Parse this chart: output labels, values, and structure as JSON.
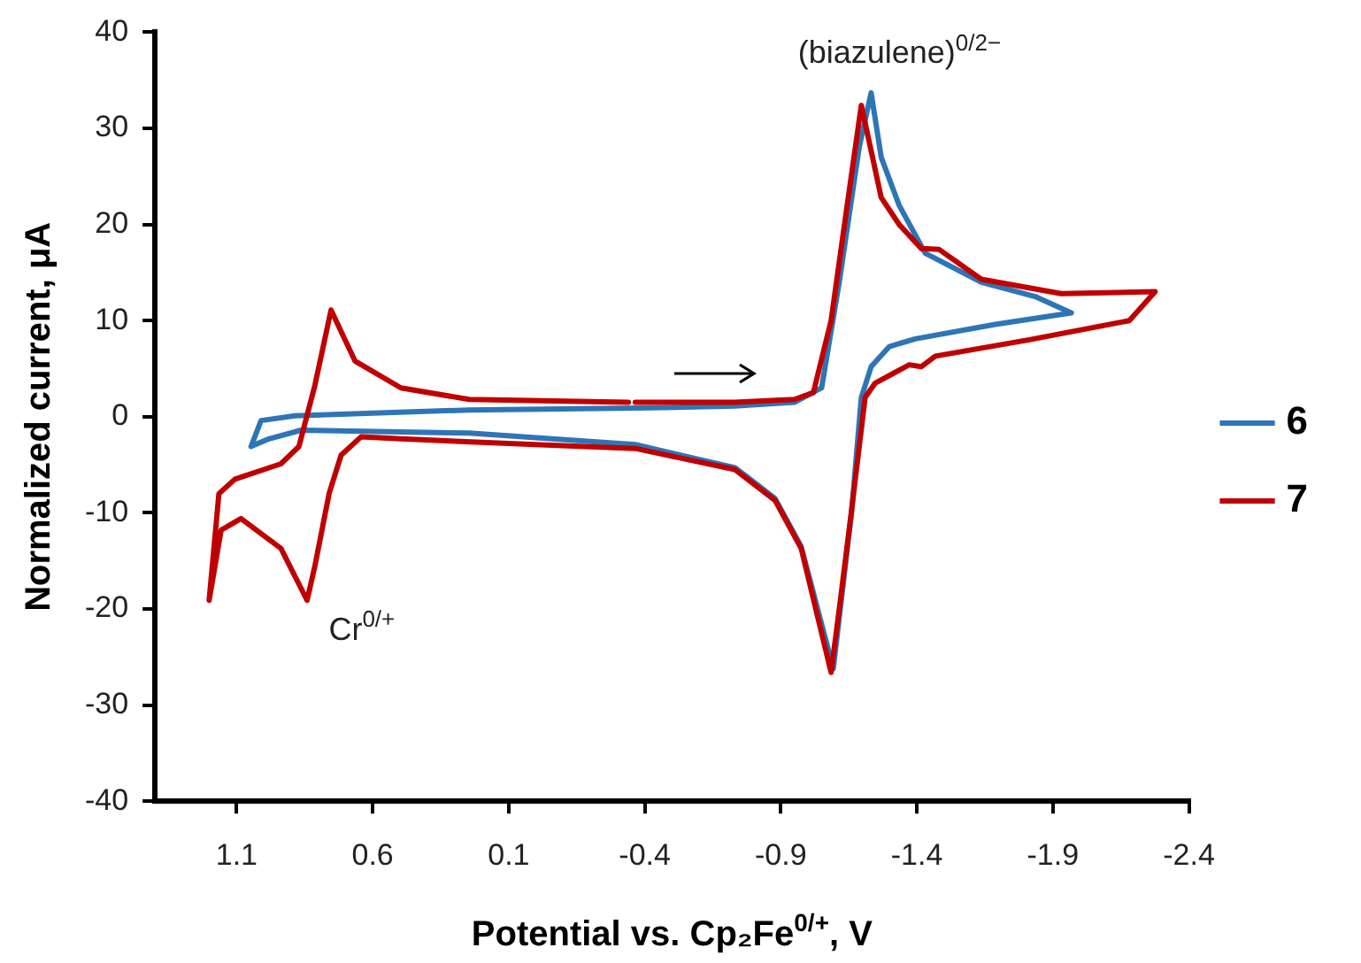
{
  "chart_data": {
    "type": "line",
    "xlabel": "Potential vs. Cp₂Fe$^{0/+}$, V",
    "ylabel": "Normalized current, μA",
    "xlim": [
      1.4,
      -2.4
    ],
    "xticks": [
      1.1,
      0.6,
      0.1,
      -0.4,
      -0.9,
      -1.4,
      -1.9,
      -2.4
    ],
    "ylim": [
      -40,
      40
    ],
    "yticks": [
      -40,
      -30,
      -20,
      -10,
      0,
      10,
      20,
      30,
      40
    ],
    "grid": false,
    "legend": "right",
    "marker": "none",
    "line_style": "solid",
    "annotations": [
      "(biazulene)$^{0/2−}$",
      "Cr$^{0/+}$"
    ],
    "series": [
      {
        "name": "6",
        "color": "#2e75b6",
        "x": [
          1.047,
          1.01,
          0.885,
          0.246,
          -0.365,
          -0.73,
          -0.95,
          -1.05,
          -1.115,
          -1.188,
          -1.232,
          -1.269,
          -1.335,
          -1.431,
          -1.637,
          -1.835,
          -1.968,
          -1.688,
          -1.394,
          -1.299,
          -1.232,
          -1.196,
          -1.16,
          -1.093,
          -0.975,
          -0.879,
          -0.732,
          -0.365,
          0.246,
          0.863,
          0.981,
          1.04
        ],
        "values": [
          -3.1,
          -0.4,
          0.1,
          0.7,
          0.9,
          1.1,
          1.5,
          3,
          14,
          28,
          33.7,
          27,
          22,
          17,
          14,
          12.5,
          10.8,
          9.6,
          8.1,
          7.3,
          5.2,
          2,
          -10,
          -26.2,
          -13.5,
          -8.5,
          -5.3,
          -2.9,
          -1.7,
          -1.4,
          -2.3,
          -3
        ]
      },
      {
        "name": "7",
        "color": "#c00000",
        "x": [
          -0.365,
          -0.73,
          -0.95,
          -1.02,
          -1.05,
          -1.085,
          -1.144,
          -1.196,
          -1.269,
          -1.335,
          -1.416,
          -1.482,
          -1.637,
          -1.931,
          -2.276,
          -2.181,
          -1.813,
          -1.468,
          -1.416,
          -1.372,
          -1.247,
          -1.21,
          -1.159,
          -1.115,
          -1.085,
          -0.975,
          -0.879,
          -0.732,
          -0.365,
          0.003,
          0.496,
          0.643,
          0.716,
          0.76,
          0.812,
          0.841,
          0.937,
          1.084,
          1.157,
          1.201,
          1.165,
          1.106,
          0.937,
          0.871,
          0.812,
          0.753,
          0.665,
          0.496,
          0.246,
          -0.34
        ],
        "values": [
          1.5,
          1.5,
          1.8,
          2.5,
          6,
          10,
          22,
          32.4,
          22.8,
          20,
          17.5,
          17.4,
          14.3,
          12.8,
          13,
          10,
          8,
          6.3,
          5.2,
          5.4,
          3.5,
          2,
          -10,
          -20,
          -26.6,
          -13.7,
          -8.7,
          -5.5,
          -3.3,
          -2.9,
          -2.3,
          -2.1,
          -4,
          -8,
          -15.5,
          -19.1,
          -13.7,
          -10.6,
          -11.8,
          -19.1,
          -8,
          -6.5,
          -4.9,
          -3.1,
          3.3,
          11.1,
          5.8,
          3,
          1.8,
          1.5
        ]
      }
    ]
  }
}
